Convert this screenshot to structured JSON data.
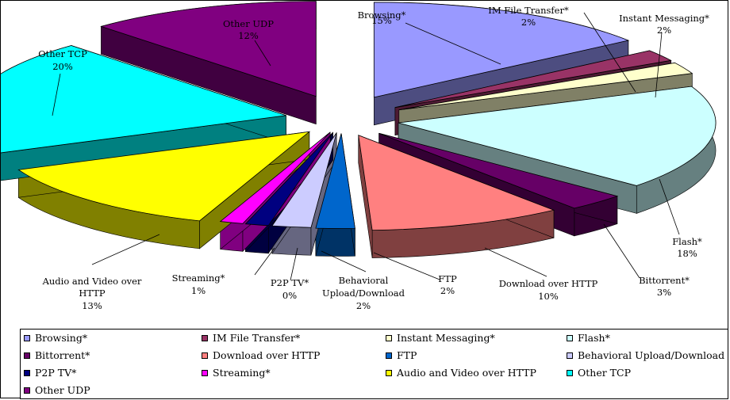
{
  "chart_data": {
    "type": "pie",
    "title": "",
    "series": [
      {
        "name": "Browsing*",
        "value": 15,
        "label": "15%",
        "color": "#9999FF",
        "side": "#4D4D80",
        "top": "#B3B3FF"
      },
      {
        "name": "IM File Transfer*",
        "value": 2,
        "label": "2%",
        "color": "#993366",
        "side": "#4D1A33",
        "top": "#B35C85"
      },
      {
        "name": "Instant Messaging*",
        "value": 2,
        "label": "2%",
        "color": "#FFFFCC",
        "side": "#808066",
        "top": "#FFFFE0"
      },
      {
        "name": "Flash*",
        "value": 18,
        "label": "18%",
        "color": "#CCFFFF",
        "side": "#668080",
        "top": "#E0FFFF"
      },
      {
        "name": "Bittorrent*",
        "value": 3,
        "label": "3%",
        "color": "#660066",
        "side": "#330033",
        "top": "#853385"
      },
      {
        "name": "Download over HTTP",
        "value": 10,
        "label": "10%",
        "color": "#FF8080",
        "side": "#804040",
        "top": "#FFA0A0"
      },
      {
        "name": "FTP",
        "value": 2,
        "label": "2%",
        "color": "#0066CC",
        "side": "#003366",
        "top": "#3385D6"
      },
      {
        "name": "Behavioral Upload/Download",
        "value": 2,
        "label": "2%",
        "color": "#CCCCFF",
        "side": "#666680",
        "top": "#E0E0FF"
      },
      {
        "name": "P2P TV*",
        "value": 0,
        "label": "0%",
        "color": "#000080",
        "side": "#000040",
        "top": "#1A1AA0"
      },
      {
        "name": "Streaming*",
        "value": 1,
        "label": "1%",
        "color": "#FF00FF",
        "side": "#800080",
        "top": "#FF40FF"
      },
      {
        "name": "Audio and Video over HTTP",
        "value": 13,
        "label": "13%",
        "color": "#FFFF00",
        "side": "#808000",
        "top": "#FFFF40"
      },
      {
        "name": "Other TCP",
        "value": 20,
        "label": "20%",
        "color": "#00FFFF",
        "side": "#008080",
        "top": "#40FFFF"
      },
      {
        "name": "Other UDP",
        "value": 12,
        "label": "12%",
        "color": "#800080",
        "side": "#400040",
        "top": "#993399"
      }
    ],
    "slice_labels": [
      [
        "Browsing*"
      ],
      [
        "IM File Transfer*"
      ],
      [
        "Instant Messaging*"
      ],
      [
        "Flash*"
      ],
      [
        "Bittorrent*"
      ],
      [
        "Download over HTTP"
      ],
      [
        "FTP"
      ],
      [
        "Behavioral",
        "Upload/Download"
      ],
      [
        "P2P TV*"
      ],
      [
        "Streaming*"
      ],
      [
        "Audio and Video over",
        "HTTP"
      ],
      [
        "Other TCP"
      ],
      [
        "Other UDP"
      ]
    ],
    "legend": {
      "position": "bottom",
      "columns": 4
    }
  }
}
